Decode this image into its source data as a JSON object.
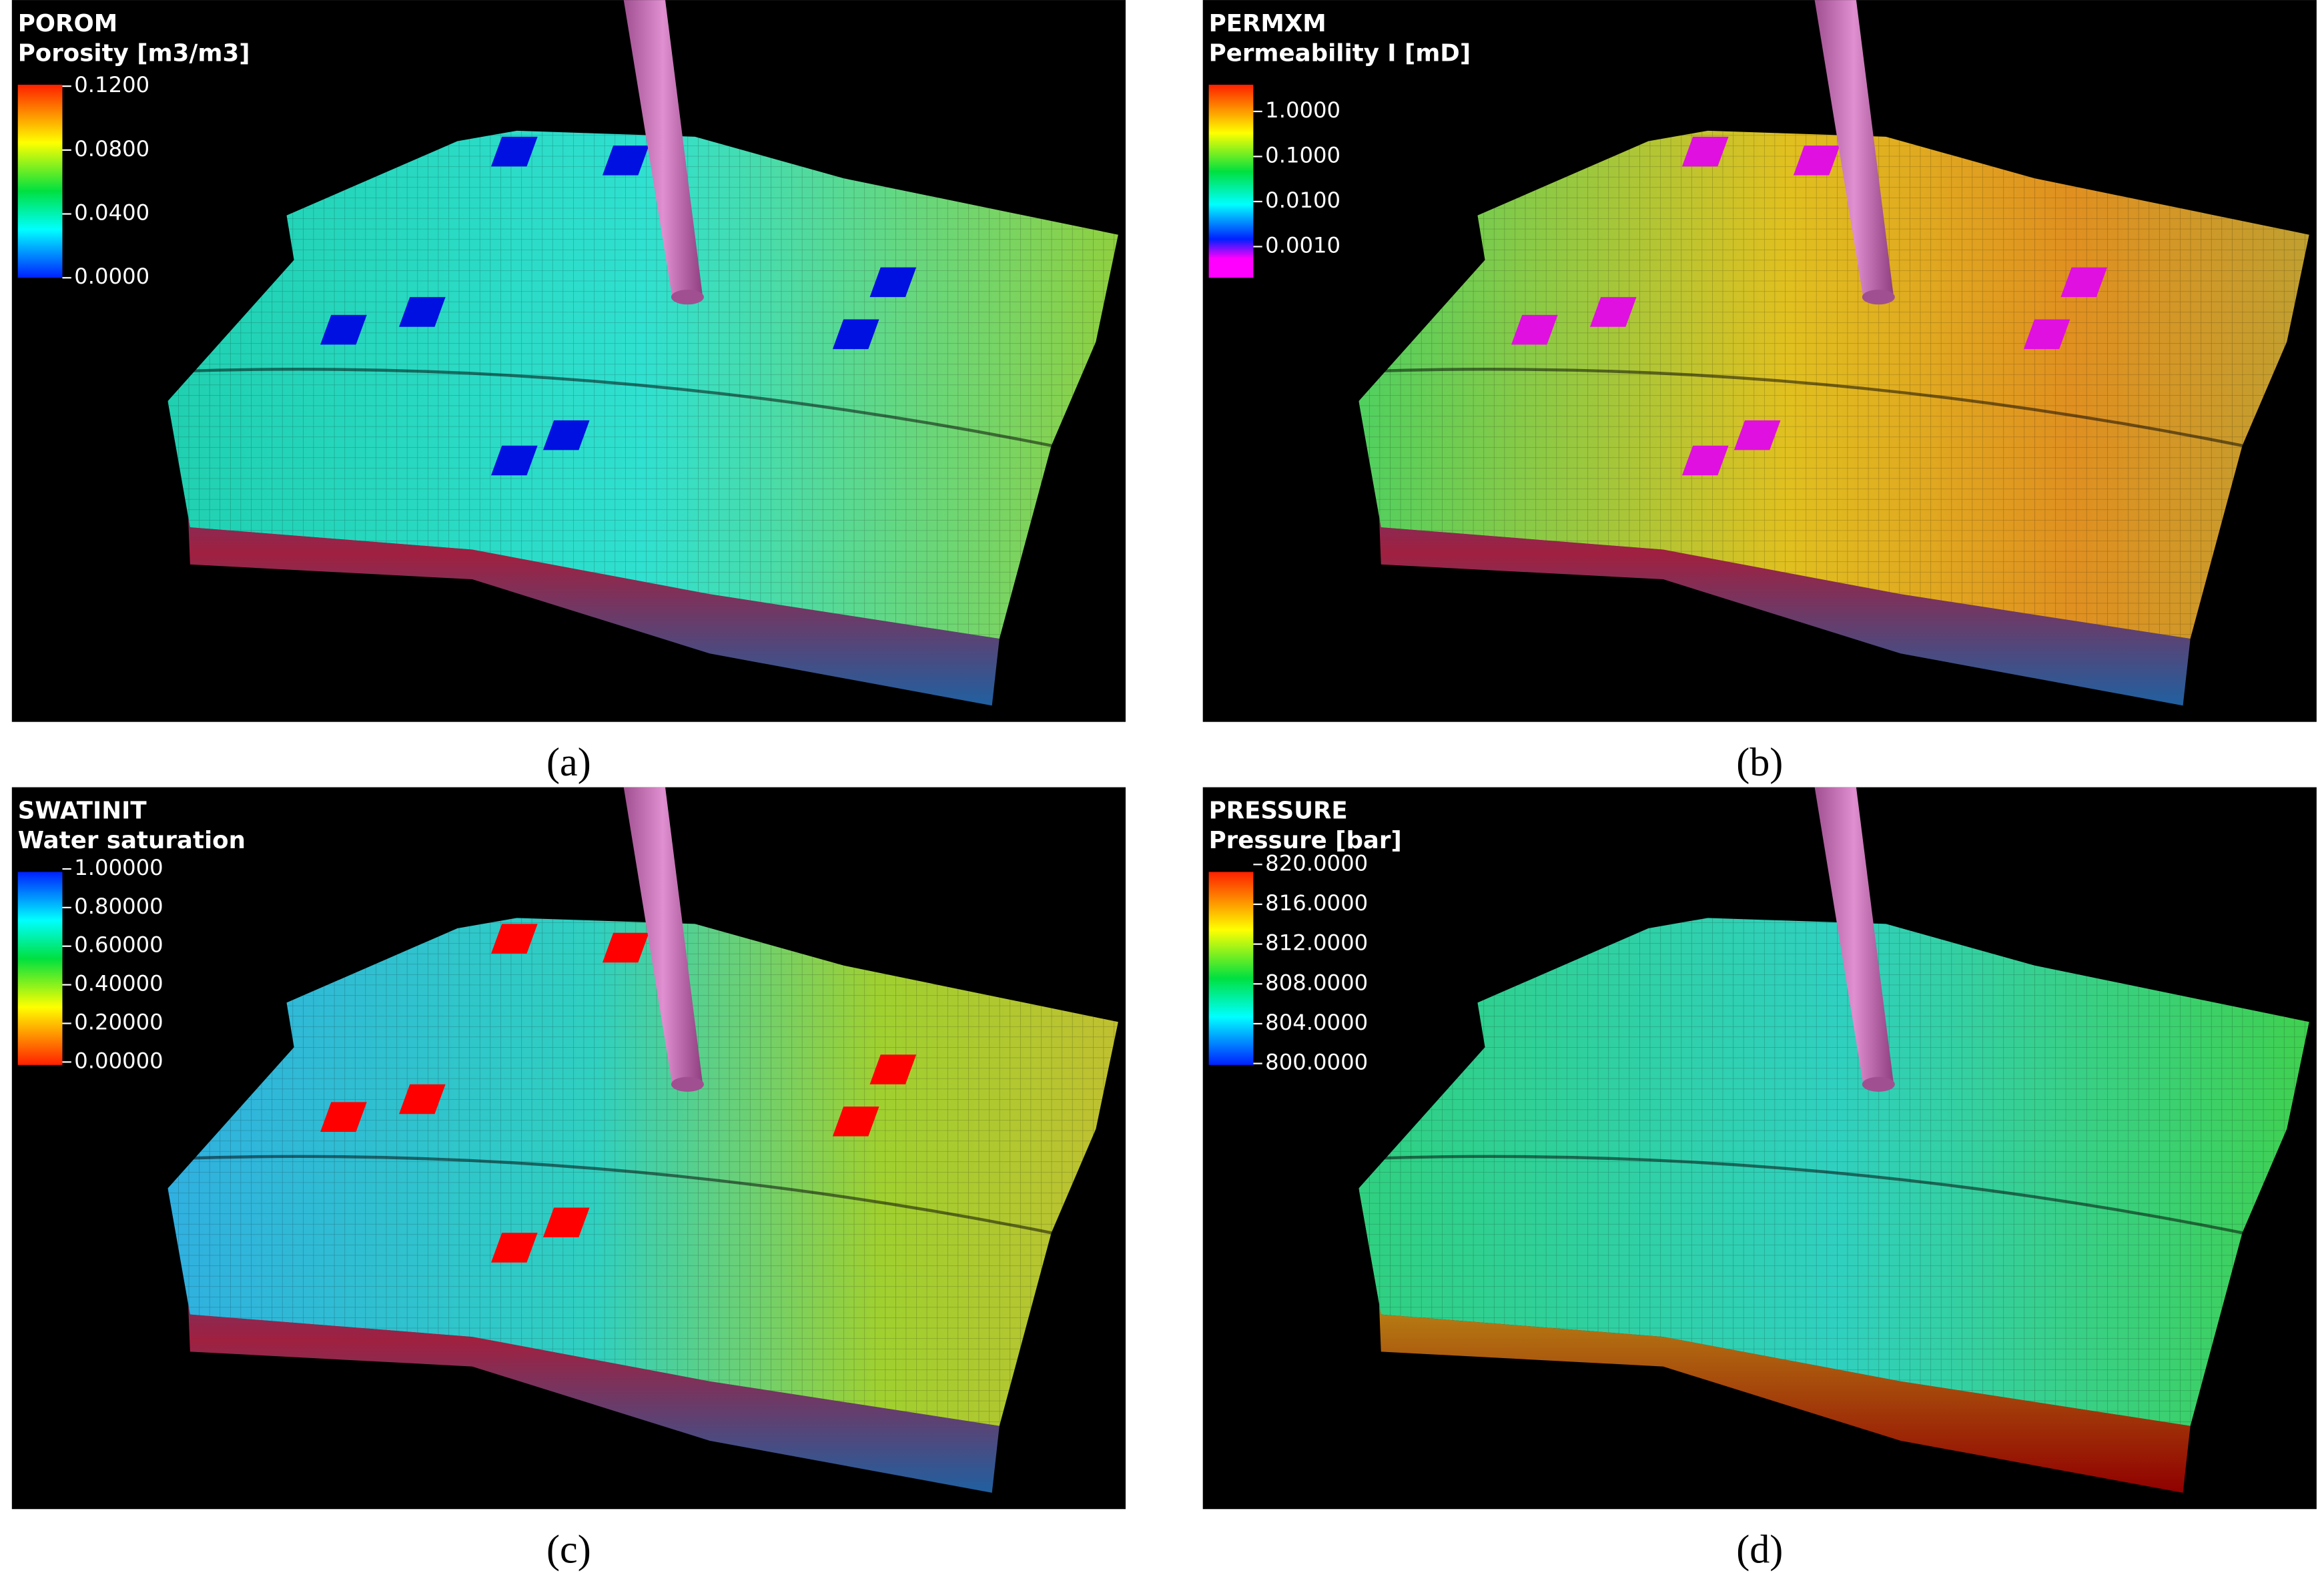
{
  "panels": [
    {
      "property": "POROM",
      "description": "Porosity [m3/m3]",
      "scale_labels": [
        "0.1200",
        "0.0800",
        "0.0400",
        "0.0000"
      ],
      "caption": "(a)"
    },
    {
      "property": "PERMXM",
      "description": "Permeability I [mD]",
      "scale_labels": [
        "1.0000",
        "0.1000",
        "0.0100",
        "0.0010"
      ],
      "caption": "(b)"
    },
    {
      "property": "SWATINIT",
      "description": "Water saturation",
      "scale_labels": [
        "1.00000",
        "0.80000",
        "0.60000",
        "0.40000",
        "0.20000",
        "0.00000"
      ],
      "caption": "(c)"
    },
    {
      "property": "PRESSURE",
      "description": "Pressure [bar]",
      "scale_labels": [
        "820.0000",
        "816.0000",
        "812.0000",
        "808.0000",
        "804.0000",
        "800.0000"
      ],
      "caption": "(d)"
    }
  ]
}
